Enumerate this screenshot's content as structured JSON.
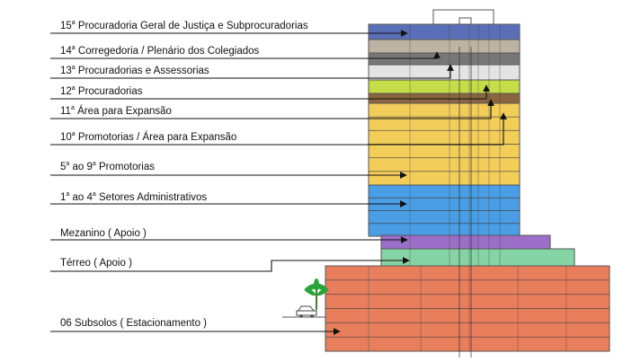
{
  "colors": {
    "floor15": "#5a6fb8",
    "floor14": "#bdb3a3",
    "floor13": "#e4e4e4",
    "machine": "#777777",
    "floor12": "#c4dd48",
    "floor11": "#8a6640",
    "office": "#f2cd5a",
    "admin": "#4a9ee6",
    "mezzanine": "#9b6fc8",
    "ground": "#86d3a5",
    "parking": "#e97e5c",
    "palm": "#2ca33a",
    "outline": "#555555",
    "ink": "#111111"
  },
  "labels": [
    {
      "num": "15",
      "sup": "a",
      "text": "Procuradoria Geral de Justiça e Subprocuradorias"
    },
    {
      "num": "14",
      "sup": "a",
      "text": "Corregedoria / Plenário dos Colegiados"
    },
    {
      "num": "13",
      "sup": "a",
      "text": "Procuradorias e Assessorias"
    },
    {
      "num": "12",
      "sup": "a",
      "text": "Procuradorias"
    },
    {
      "num": "11",
      "sup": "a",
      "text": "Área para Expansão"
    },
    {
      "num": "10",
      "sup": "a",
      "text": "Promotorias / Área para Expansão"
    },
    {
      "num": "5",
      "sup": "a",
      "text": "ao 9",
      "sup2": "a",
      "text2": "Promotorias"
    },
    {
      "num": "1",
      "sup": "a",
      "text": "ao 4",
      "sup2": "a",
      "text2": "Setores Administrativos"
    },
    {
      "num": "",
      "sup": "",
      "text": "Mezanino ( Apoio )"
    },
    {
      "num": "",
      "sup": "",
      "text": "Térreo ( Apoio )"
    },
    {
      "num": "",
      "sup": "",
      "text": "06 Subsolos ( Estacionamento )"
    }
  ]
}
